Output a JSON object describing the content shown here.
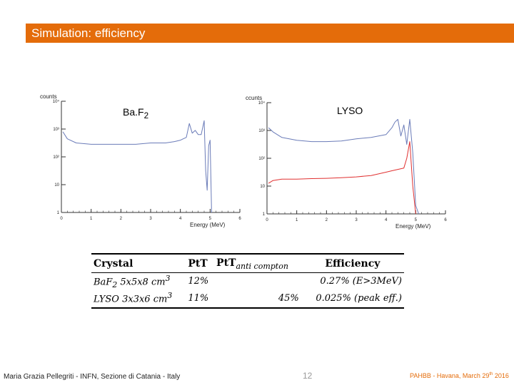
{
  "title": "Simulation: efficiency",
  "chart_data": [
    {
      "type": "line",
      "label": "BaF2",
      "ylabel": "counts",
      "xlabel": "Energy (MeV)",
      "xlim": [
        0,
        6
      ],
      "ylim_log10": [
        0,
        4
      ],
      "x_ticks": [
        "0",
        "1",
        "2",
        "3",
        "4",
        "5",
        "6"
      ],
      "y_ticks": [
        "1",
        "10",
        "10²",
        "10³",
        "10⁴"
      ],
      "series": [
        {
          "name": "spectrum",
          "color": "#6a7bb8",
          "x": [
            0.05,
            0.2,
            0.5,
            1.0,
            1.5,
            2.0,
            2.5,
            3.0,
            3.5,
            3.8,
            4.0,
            4.2,
            4.3,
            4.4,
            4.5,
            4.6,
            4.7,
            4.8,
            4.85,
            4.9,
            4.95,
            5.0,
            5.05
          ],
          "log10_counts": [
            2.9,
            2.65,
            2.5,
            2.45,
            2.45,
            2.45,
            2.45,
            2.5,
            2.5,
            2.55,
            2.6,
            2.7,
            3.2,
            2.85,
            2.95,
            2.8,
            2.8,
            3.3,
            1.5,
            0.8,
            2.4,
            2.6,
            0.0
          ]
        }
      ]
    },
    {
      "type": "line",
      "label": "LYSO",
      "ylabel": "ccunts",
      "xlabel": "Energy (MeV)",
      "xlim": [
        0,
        6
      ],
      "ylim_log10": [
        0,
        4
      ],
      "x_ticks": [
        "0",
        "1",
        "2",
        "3",
        "4",
        "5",
        "6"
      ],
      "y_ticks": [
        "1",
        "10",
        "10²",
        "10³",
        "10⁴"
      ],
      "series": [
        {
          "name": "spectrum",
          "color": "#6a7bb8",
          "x": [
            0.05,
            0.2,
            0.5,
            1.0,
            1.5,
            2.0,
            2.5,
            3.0,
            3.5,
            4.0,
            4.2,
            4.3,
            4.4,
            4.5,
            4.6,
            4.7,
            4.8,
            4.9,
            5.0,
            5.1
          ],
          "log10_counts": [
            3.1,
            2.95,
            2.75,
            2.65,
            2.6,
            2.6,
            2.62,
            2.7,
            2.75,
            2.85,
            3.1,
            3.3,
            3.4,
            2.8,
            3.2,
            2.5,
            3.4,
            2.2,
            0.3,
            0.0
          ]
        },
        {
          "name": "anti-compton",
          "color": "#e03030",
          "x": [
            0.05,
            0.2,
            0.5,
            1.0,
            1.5,
            2.0,
            2.5,
            3.0,
            3.5,
            4.0,
            4.2,
            4.4,
            4.6,
            4.7,
            4.8,
            4.9,
            5.0
          ],
          "log10_counts": [
            1.1,
            1.2,
            1.25,
            1.25,
            1.27,
            1.28,
            1.3,
            1.33,
            1.38,
            1.5,
            1.55,
            1.6,
            1.65,
            2.0,
            2.6,
            1.0,
            0.0
          ]
        }
      ]
    }
  ],
  "table": {
    "headers": [
      "Crystal",
      "PtT",
      "PtT",
      "anti compton",
      "Efficiency"
    ],
    "rows": [
      {
        "crystal": "BaF",
        "crystal_sub": "2",
        "dims": " 5x5x8 cm",
        "dims_sup": "3",
        "ptt": "12%",
        "ptt_anti": "",
        "efficiency": "0.27% (E>3MeV)"
      },
      {
        "crystal": "LYSO",
        "crystal_sub": "",
        "dims": " 3x3x6 cm",
        "dims_sup": "3",
        "ptt": "11%",
        "ptt_anti": "45%",
        "efficiency": "0.025% (peak eff.)"
      }
    ]
  },
  "plot_labels": {
    "left_main": "Ba.F",
    "left_sub": "2",
    "right": "LYSO"
  },
  "footer": {
    "author": "Maria Grazia Pellegriti - INFN, Sezione di Catania - Italy",
    "page": "12",
    "event": "PAHBB - Havana, March 29",
    "event_sup": "th",
    "event_year": " 2016"
  }
}
